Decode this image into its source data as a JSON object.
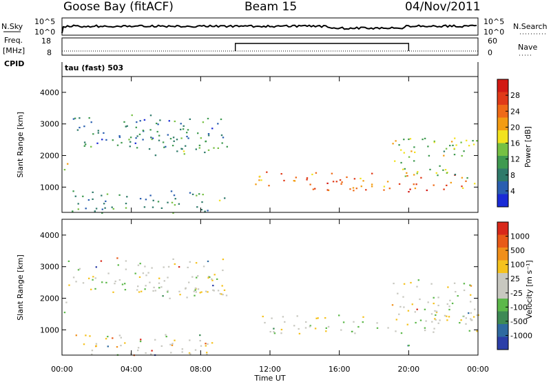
{
  "header": {
    "station": "Goose Bay (fitACF)",
    "beam": "Beam 15",
    "date": "04/Nov/2011"
  },
  "status_panels": {
    "nsky_label": "N.Sky",
    "nsky_ticks": [
      "10^5",
      "10^0"
    ],
    "nsearch_label": "N.Search",
    "nsearch_ticks": [
      "10^5",
      "10^0"
    ],
    "freq_label_top": "Freq.",
    "freq_label_bottom": "[MHz]",
    "freq_ticks": [
      "18",
      "8"
    ],
    "nave_label": "Nave",
    "nave_ticks": [
      "60",
      "0"
    ],
    "cpid_label": "CPID",
    "cpid_value": "tau (fast) 503"
  },
  "chart_data": [
    {
      "type": "heatmap",
      "name": "power",
      "ylabel": "Slant Range [km]",
      "xlabel": "Time UT",
      "ylim": [
        200,
        4500
      ],
      "xlim_hours": [
        0,
        24
      ],
      "y_ticks": [
        "1000",
        "2000",
        "3000",
        "4000"
      ],
      "x_ticks": [
        "00:00",
        "04:00",
        "08:00",
        "12:00",
        "16:00",
        "20:00",
        "00:00"
      ],
      "colorbar": {
        "label": "Power [dB]",
        "ticks": [
          "4",
          "8",
          "12",
          "16",
          "20",
          "24",
          "28"
        ],
        "colors": [
          "#1a2bd6",
          "#2a5fb0",
          "#2f7a6a",
          "#3f9a50",
          "#76c043",
          "#f2e21e",
          "#f39c12",
          "#ef6a17",
          "#e03a18",
          "#d21a14"
        ]
      },
      "echo_regions": [
        {
          "t0": 0.0,
          "t1": 0.4,
          "r0": 1500,
          "r1": 2000,
          "level": 0.55
        },
        {
          "t0": 0.3,
          "t1": 9.5,
          "r0": 2200,
          "r1": 3300,
          "level": 0.25
        },
        {
          "t0": 5.0,
          "t1": 9.5,
          "r0": 2000,
          "r1": 2600,
          "level": 0.35
        },
        {
          "t0": 0.5,
          "t1": 8.5,
          "r0": 200,
          "r1": 900,
          "level": 0.3
        },
        {
          "t0": 7.0,
          "t1": 9.5,
          "r0": 500,
          "r1": 800,
          "level": 0.4
        },
        {
          "t0": 11.0,
          "t1": 24.0,
          "r0": 900,
          "r1": 1500,
          "level": 0.75
        },
        {
          "t0": 19.0,
          "t1": 24.0,
          "r0": 1300,
          "r1": 2600,
          "level": 0.45
        },
        {
          "t0": 19.8,
          "t1": 20.3,
          "r0": 500,
          "r1": 1000,
          "level": 0.95
        }
      ]
    },
    {
      "type": "heatmap",
      "name": "velocity",
      "ylabel": "Slant Range [km]",
      "xlabel": "Time UT",
      "ylim": [
        200,
        4500
      ],
      "xlim_hours": [
        0,
        24
      ],
      "y_ticks": [
        "1000",
        "2000",
        "3000",
        "4000"
      ],
      "x_ticks": [
        "00:00",
        "04:00",
        "08:00",
        "12:00",
        "16:00",
        "20:00",
        "00:00"
      ],
      "colorbar": {
        "label": "Velocity [m s⁻¹]",
        "ticks": [
          "1000",
          "500",
          "100",
          "25",
          "-25",
          "-100",
          "-500",
          "-1000"
        ],
        "colors": [
          "#2b3ea8",
          "#2f6aa0",
          "#3e8a55",
          "#5cb84a",
          "#c8c8c0",
          "#c8c8c0",
          "#f5c21e",
          "#f08f1a",
          "#e85a18",
          "#d8281a"
        ]
      },
      "echo_regions": [
        {
          "t0": 0.0,
          "t1": 0.4,
          "r0": 1500,
          "r1": 2000,
          "level": 0.5
        },
        {
          "t0": 0.3,
          "t1": 9.5,
          "r0": 2200,
          "r1": 3300,
          "level": 0.5
        },
        {
          "t0": 5.0,
          "t1": 9.5,
          "r0": 2000,
          "r1": 2600,
          "level": 0.5
        },
        {
          "t0": 0.5,
          "t1": 8.5,
          "r0": 200,
          "r1": 900,
          "level": 0.55
        },
        {
          "t0": 7.0,
          "t1": 9.5,
          "r0": 500,
          "r1": 800,
          "level": 0.5
        },
        {
          "t0": 11.0,
          "t1": 24.0,
          "r0": 900,
          "r1": 1500,
          "level": 0.5
        },
        {
          "t0": 19.0,
          "t1": 24.0,
          "r0": 1300,
          "r1": 2600,
          "level": 0.5
        },
        {
          "t0": 19.8,
          "t1": 20.3,
          "r0": 500,
          "r1": 1000,
          "level": 0.3
        }
      ]
    }
  ]
}
